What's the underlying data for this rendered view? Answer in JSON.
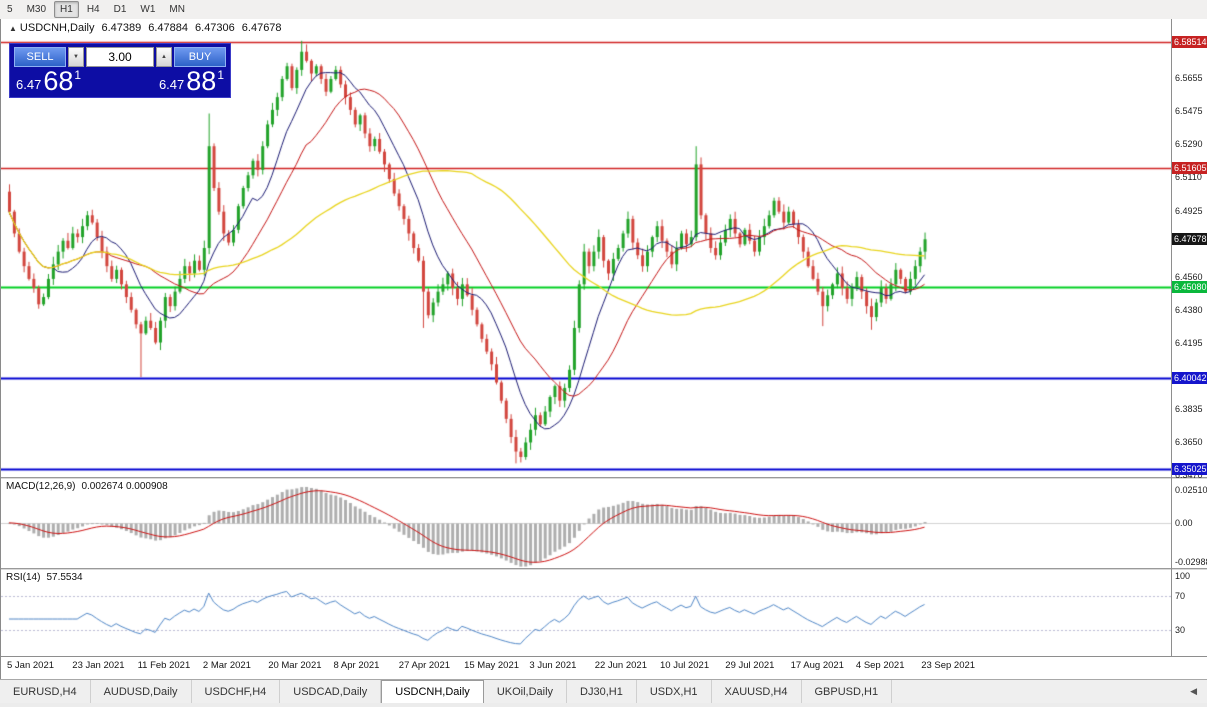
{
  "toolbar": {
    "periods": [
      "5",
      "M30",
      "H1",
      "H4",
      "D1",
      "W1",
      "MN"
    ],
    "active_period": "H1"
  },
  "symbol_line": {
    "icon": "▲",
    "title": "USDCNH,Daily",
    "open": "6.47389",
    "high": "6.47884",
    "low": "6.47306",
    "close": "6.47678"
  },
  "trade_panel": {
    "sell_label": "SELL",
    "buy_label": "BUY",
    "volume": "3.00",
    "down_icon": "▼",
    "up_icon": "▲",
    "sell_price": {
      "big": "6.47",
      "pips": "68",
      "point": "1"
    },
    "buy_price": {
      "big": "6.47",
      "pips": "88",
      "point": "1"
    }
  },
  "indicators": {
    "macd_label": "MACD(12,26,9)",
    "macd_values": "0.002674 0.000908",
    "rsi_label": "RSI(14)",
    "rsi_value": "57.5534"
  },
  "price_axis": {
    "ticks": [
      6.5655,
      6.5475,
      6.529,
      6.511,
      6.4925,
      6.456,
      6.438,
      6.4195,
      6.3835,
      6.365,
      6.347
    ],
    "markers": [
      {
        "text": "6.58514",
        "value": 6.58514,
        "bg": "#c62222"
      },
      {
        "text": "6.51605",
        "value": 6.51605,
        "bg": "#c62222"
      },
      {
        "text": "6.47678",
        "value": 6.47678,
        "bg": "#161616"
      },
      {
        "text": "6.45080",
        "value": 6.4508,
        "bg": "#0ab83c"
      },
      {
        "text": "6.40042",
        "value": 6.40042,
        "bg": "#1515cc"
      },
      {
        "text": "6.35025",
        "value": 6.35025,
        "bg": "#1515cc"
      }
    ]
  },
  "levels": [
    {
      "price": 6.58514,
      "color": "#d02020",
      "width": 1.4
    },
    {
      "price": 6.51605,
      "color": "#d02020",
      "width": 1.4
    },
    {
      "price": 6.4508,
      "color": "#00cf22",
      "width": 2
    },
    {
      "price": 6.40042,
      "color": "#0000d0",
      "width": 2
    },
    {
      "price": 6.35025,
      "color": "#0000d0",
      "width": 2
    }
  ],
  "chart_data": {
    "type": "candlestick",
    "symbol": "USDCNH",
    "timeframe": "Daily",
    "last_ohlc": {
      "open": 6.47389,
      "high": 6.47884,
      "low": 6.47306,
      "close": 6.47678
    },
    "y_range": [
      6.346,
      6.598
    ],
    "first_open": 6.503,
    "closes": [
      6.492,
      6.48,
      6.47,
      6.462,
      6.455,
      6.45,
      6.441,
      6.445,
      6.455,
      6.463,
      6.47,
      6.476,
      6.472,
      6.48,
      6.478,
      6.484,
      6.49,
      6.486,
      6.478,
      6.47,
      6.462,
      6.455,
      6.46,
      6.452,
      6.445,
      6.438,
      6.43,
      6.425,
      6.432,
      6.428,
      6.42,
      6.432,
      6.445,
      6.44,
      6.448,
      6.455,
      6.462,
      6.458,
      6.465,
      6.46,
      6.472,
      6.528,
      6.505,
      6.492,
      6.48,
      6.475,
      6.482,
      6.495,
      6.505,
      6.512,
      6.52,
      6.515,
      6.528,
      6.54,
      6.548,
      6.555,
      6.565,
      6.572,
      6.56,
      6.57,
      6.58,
      6.575,
      6.568,
      6.572,
      6.565,
      6.558,
      6.565,
      6.57,
      6.562,
      6.555,
      6.548,
      6.54,
      6.545,
      6.535,
      6.528,
      6.532,
      6.525,
      6.518,
      6.51,
      6.502,
      6.495,
      6.488,
      6.48,
      6.472,
      6.465,
      6.448,
      6.435,
      6.442,
      6.448,
      6.452,
      6.458,
      6.45,
      6.444,
      6.452,
      6.446,
      6.438,
      6.43,
      6.422,
      6.415,
      6.408,
      6.398,
      6.388,
      6.378,
      6.368,
      6.36,
      6.357,
      6.365,
      6.372,
      6.38,
      6.375,
      6.382,
      6.39,
      6.396,
      6.388,
      6.395,
      6.405,
      6.428,
      6.452,
      6.47,
      6.462,
      6.47,
      6.478,
      6.465,
      6.458,
      6.466,
      6.472,
      6.48,
      6.488,
      6.475,
      6.468,
      6.462,
      6.47,
      6.478,
      6.484,
      6.476,
      6.47,
      6.463,
      6.472,
      6.48,
      6.474,
      6.478,
      6.518,
      6.49,
      6.48,
      6.472,
      6.468,
      6.475,
      6.482,
      6.488,
      6.48,
      6.474,
      6.482,
      6.476,
      6.47,
      6.478,
      6.484,
      6.49,
      6.498,
      6.492,
      6.486,
      6.492,
      6.485,
      6.478,
      6.47,
      6.462,
      6.455,
      6.448,
      6.44,
      6.446,
      6.452,
      6.458,
      6.45,
      6.444,
      6.45,
      6.456,
      6.448,
      6.44,
      6.434,
      6.442,
      6.45,
      6.444,
      6.452,
      6.46,
      6.455,
      6.448,
      6.455,
      6.462,
      6.47,
      6.4768
    ],
    "wick_overrides": {
      "27": {
        "low": 6.401
      },
      "41": {
        "high": 6.546
      },
      "60": {
        "high": 6.586
      },
      "61": {
        "high": 6.584
      },
      "85": {
        "low": 6.428
      },
      "104": {
        "low": 6.3535
      },
      "105": {
        "low": 6.354
      },
      "141": {
        "high": 6.528
      },
      "167": {
        "low": 6.429
      },
      "177": {
        "low": 6.427
      },
      "188": {
        "high": 6.4805
      }
    },
    "ma": [
      {
        "period": 10,
        "color": "#1a1a72",
        "width": 1
      },
      {
        "period": 21,
        "color": "#c41616",
        "width": 1
      },
      {
        "period": 55,
        "color": "#e8d41e",
        "width": 1.3
      }
    ],
    "colors": {
      "bull": "#22a32a",
      "bear": "#d2463e",
      "hist_fill": "#aeaeae",
      "signal": "#cc1010",
      "rsi": "#4f86c6",
      "zero_line": "#d2d2d2",
      "level_dotted": "#b9b9d2"
    },
    "macd": {
      "params": [
        12,
        26,
        9
      ],
      "range": [
        -0.0345,
        0.0335
      ],
      "axis": [
        {
          "text": "0.02510",
          "value": 0.0251
        },
        {
          "text": "0.00",
          "value": 0
        },
        {
          "text": "-0.02988",
          "value": -0.02988
        }
      ]
    },
    "rsi": {
      "period": 14,
      "range": [
        0,
        100
      ],
      "levels": [
        70,
        30
      ],
      "axis": [
        {
          "text": "100",
          "value": 100
        },
        {
          "text": "70",
          "value": 70
        },
        {
          "text": "30",
          "value": 30
        }
      ]
    },
    "x_labels": [
      "5 Jan 2021",
      "23 Jan 2021",
      "11 Feb 2021",
      "2 Mar 2021",
      "20 Mar 2021",
      "8 Apr 2021",
      "27 Apr 2021",
      "15 May 2021",
      "3 Jun 2021",
      "22 Jun 2021",
      "10 Jul 2021",
      "29 Jul 2021",
      "17 Aug 2021",
      "4 Sep 2021",
      "23 Sep 2021"
    ]
  },
  "tab_bar": {
    "scroll_icon": "◀",
    "tabs": [
      {
        "label": "EURUSD,H4",
        "active": false
      },
      {
        "label": "AUDUSD,Daily",
        "active": false
      },
      {
        "label": "USDCHF,H4",
        "active": false
      },
      {
        "label": "USDCAD,Daily",
        "active": false
      },
      {
        "label": "USDCNH,Daily",
        "active": true
      },
      {
        "label": "UKOil,Daily",
        "active": false
      },
      {
        "label": "DJ30,H1",
        "active": false
      },
      {
        "label": "USDX,H1",
        "active": false
      },
      {
        "label": "XAUUSD,H4",
        "active": false
      },
      {
        "label": "GBPUSD,H1",
        "active": false
      }
    ]
  }
}
